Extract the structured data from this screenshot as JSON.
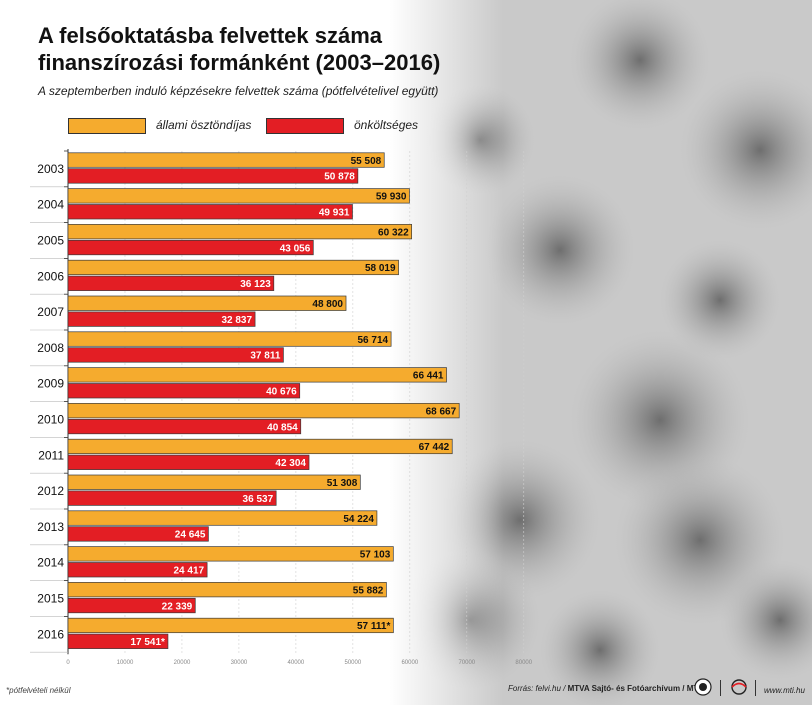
{
  "title": "A felsőoktatásba felvettek száma finanszírozási formánként (2003–2016)",
  "subtitle": "A szeptemberben induló képzésekre felvettek száma (pótfelvételivel együtt)",
  "footnote": "*pótfelvételi nélkül",
  "credit": {
    "source_prefix": "Forrás: felvi.hu /",
    "source_agency": "MTVA Sajtó- és Fotóarchívum / MTI"
  },
  "website": "www.mti.hu",
  "logos": [
    "mti-round-icon",
    "mti-swirl-icon"
  ],
  "colors": {
    "allami": "#f5ab2e",
    "onkoltseges": "#e31e24",
    "photo": "#8a8a8a"
  },
  "chart_data": {
    "type": "bar",
    "orientation": "horizontal",
    "categories": [
      "2003",
      "2004",
      "2005",
      "2006",
      "2007",
      "2008",
      "2009",
      "2010",
      "2011",
      "2012",
      "2013",
      "2014",
      "2015",
      "2016"
    ],
    "series": [
      {
        "name": "állami ösztöndíjas",
        "values": [
          55508,
          59930,
          60322,
          58019,
          48800,
          56714,
          66441,
          68667,
          67442,
          51308,
          54224,
          57103,
          55882,
          57111
        ],
        "labels": [
          "55 508",
          "59 930",
          "60 322",
          "58 019",
          "48 800",
          "56 714",
          "66 441",
          "68 667",
          "67 442",
          "51 308",
          "54 224",
          "57 103",
          "55 882",
          "57 111*"
        ]
      },
      {
        "name": "önköltséges",
        "values": [
          50878,
          49931,
          43056,
          36123,
          32837,
          37811,
          40676,
          40854,
          42304,
          36537,
          24645,
          24417,
          22339,
          17541
        ],
        "labels": [
          "50 878",
          "49 931",
          "43 056",
          "36 123",
          "32 837",
          "37 811",
          "40 676",
          "40 854",
          "42 304",
          "36 537",
          "24 645",
          "24 417",
          "22 339",
          "17 541*"
        ]
      }
    ],
    "xlim": [
      0,
      80000
    ],
    "x_ticks": [
      0,
      10000,
      20000,
      30000,
      40000,
      50000,
      60000,
      70000,
      80000
    ],
    "x_tick_labels": [
      "0",
      "10000",
      "20000",
      "30000",
      "40000",
      "50000",
      "60000",
      "70000",
      "80000"
    ],
    "grid": true,
    "legend_position": "top-left"
  }
}
